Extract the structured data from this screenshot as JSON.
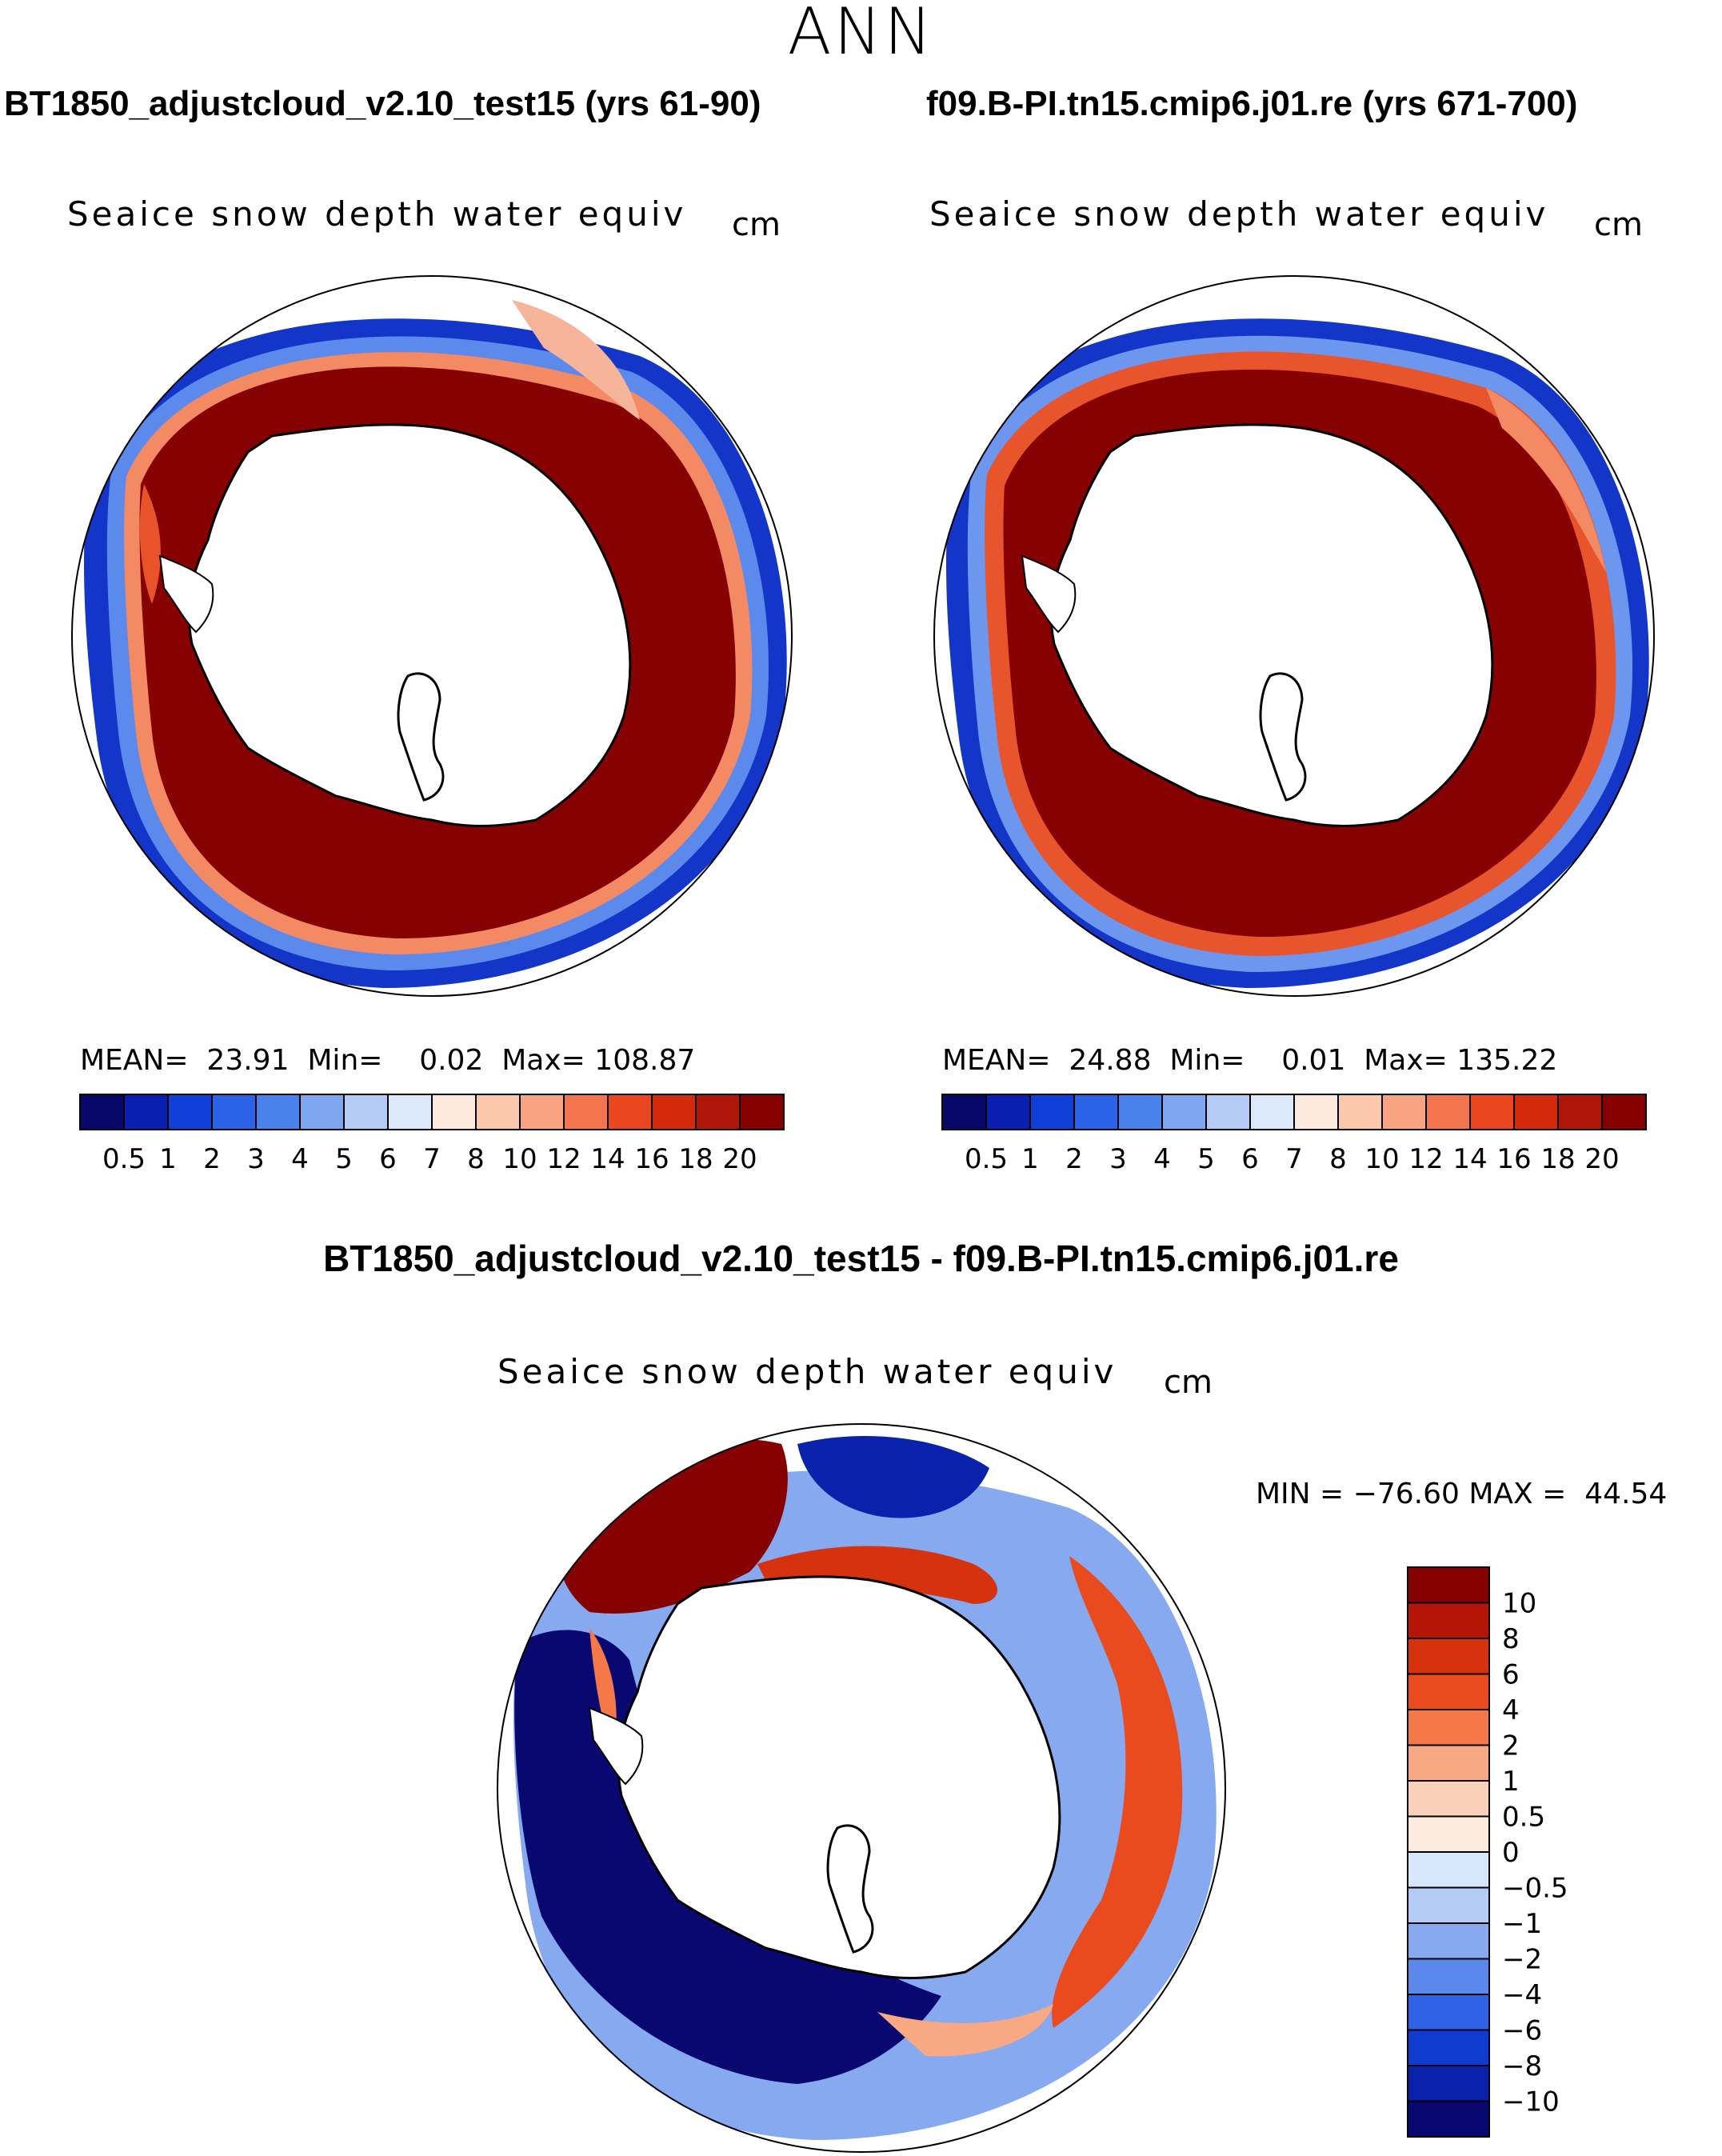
{
  "figure": {
    "season": "ANN",
    "variable_title": "Seaice snow depth water equiv",
    "units": "cm"
  },
  "panels": {
    "left": {
      "case_title": "BT1850_adjustcloud_v2.10_test15 (yrs 61-90)",
      "stats": {
        "mean_label": "MEAN=",
        "mean": "23.91",
        "min_label": "Min=",
        "min": "0.02",
        "max_label": "Max=",
        "max": "108.87"
      }
    },
    "right": {
      "case_title": "f09.B-PI.tn15.cmip6.j01.re (yrs 671-700)",
      "stats": {
        "mean_label": "MEAN=",
        "mean": "24.88",
        "min_label": "Min=",
        "min": "0.01",
        "max_label": "Max=",
        "max": "135.22"
      }
    },
    "diff": {
      "case_title": "BT1850_adjustcloud_v2.10_test15 - f09.B-PI.tn15.cmip6.j01.re",
      "stats": {
        "min_label": "MIN =",
        "min": "−76.60",
        "max_label": "MAX =",
        "max": "44.54"
      }
    }
  },
  "colorbars": {
    "abs": {
      "levels": [
        "0.5",
        "1",
        "2",
        "3",
        "4",
        "5",
        "6",
        "7",
        "8",
        "10",
        "12",
        "14",
        "16",
        "18",
        "20"
      ],
      "colors": [
        "#08086b",
        "#0a1eb2",
        "#0f3fd6",
        "#2a63e8",
        "#4a82ec",
        "#7fa6f0",
        "#b3cbf5",
        "#dce9fb",
        "#fde9de",
        "#fbc8ae",
        "#f8a382",
        "#f27550",
        "#ea4620",
        "#d42a0c",
        "#b01607",
        "#860202"
      ]
    },
    "diff": {
      "levels": [
        "10",
        "8",
        "6",
        "4",
        "2",
        "1",
        "0.5",
        "0",
        "−0.5",
        "−1",
        "−2",
        "−4",
        "−6",
        "−8",
        "−10"
      ],
      "colors": [
        "#860202",
        "#b51507",
        "#d6320d",
        "#ea4b1e",
        "#f47848",
        "#f8a983",
        "#fbd0b8",
        "#fdebe0",
        "#d8e6fb",
        "#b4ccf5",
        "#86a9f0",
        "#5a88ec",
        "#2f62e4",
        "#0f3bd0",
        "#0921ab",
        "#080870"
      ]
    }
  }
}
